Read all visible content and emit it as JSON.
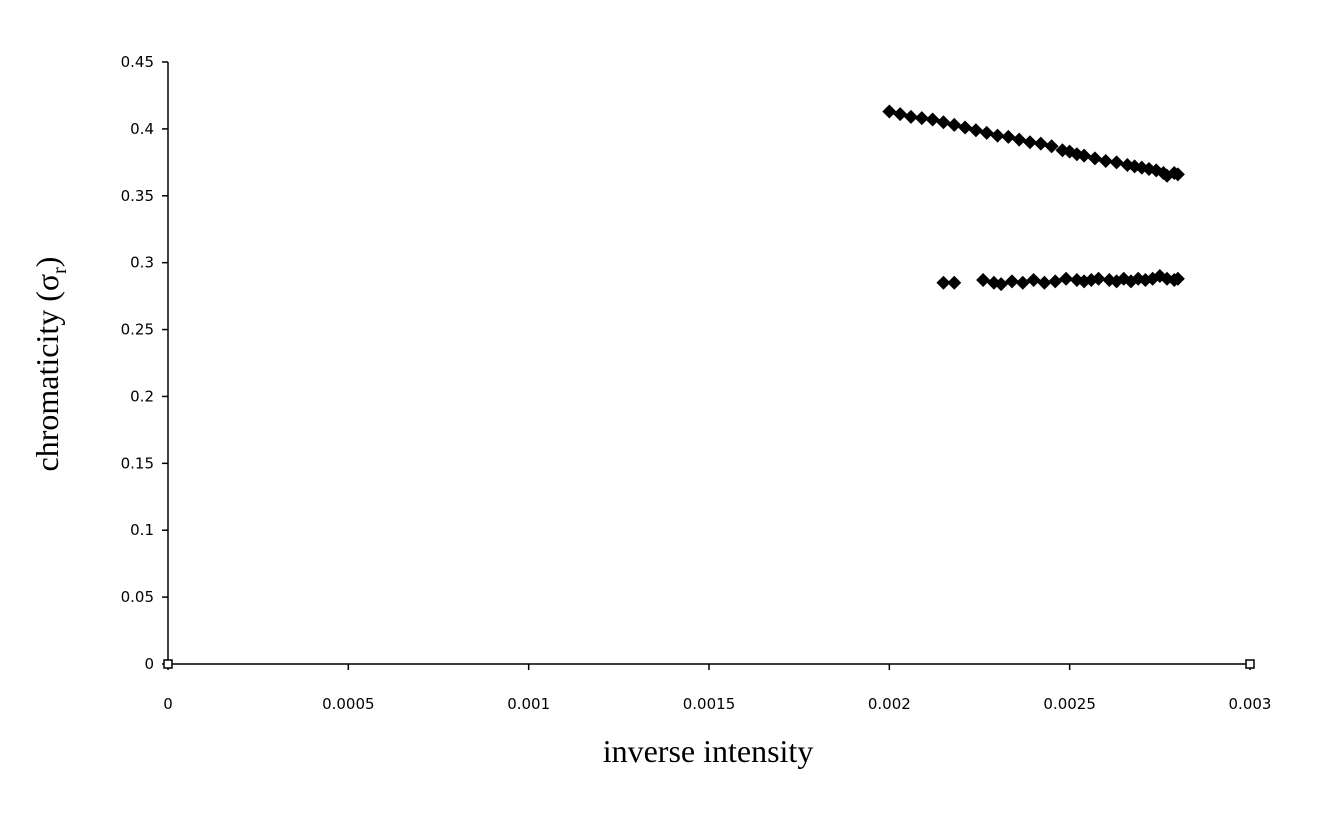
{
  "chart_data": {
    "type": "scatter",
    "xlabel": "inverse intensity",
    "ylabel": "chromaticity (σ",
    "ylabel_subscript": "r",
    "ylabel_close": ")",
    "xlim": [
      0,
      0.003
    ],
    "ylim": [
      0,
      0.45
    ],
    "x_ticks": [
      "0",
      "0.0005",
      "0.001",
      "0.0015",
      "0.002",
      "0.0025",
      "0.003"
    ],
    "y_ticks": [
      "0",
      "0.05",
      "0.1",
      "0.15",
      "0.2",
      "0.25",
      "0.3",
      "0.35",
      "0.4",
      "0.45"
    ],
    "grid": false,
    "legend": "none",
    "marker_color": "#000000",
    "series": [
      {
        "points": [
          [
            0.002,
            0.413
          ],
          [
            0.00203,
            0.411
          ],
          [
            0.00206,
            0.409
          ],
          [
            0.00209,
            0.408
          ],
          [
            0.00212,
            0.407
          ],
          [
            0.00215,
            0.405
          ],
          [
            0.00218,
            0.403
          ],
          [
            0.00221,
            0.401
          ],
          [
            0.00224,
            0.399
          ],
          [
            0.00227,
            0.397
          ],
          [
            0.0023,
            0.395
          ],
          [
            0.00233,
            0.394
          ],
          [
            0.00236,
            0.392
          ],
          [
            0.00239,
            0.39
          ],
          [
            0.00242,
            0.389
          ],
          [
            0.00245,
            0.387
          ],
          [
            0.00248,
            0.384
          ],
          [
            0.0025,
            0.383
          ],
          [
            0.00252,
            0.381
          ],
          [
            0.00254,
            0.38
          ],
          [
            0.00257,
            0.378
          ],
          [
            0.0026,
            0.376
          ],
          [
            0.00263,
            0.375
          ],
          [
            0.00266,
            0.373
          ],
          [
            0.00268,
            0.372
          ],
          [
            0.0027,
            0.371
          ],
          [
            0.00272,
            0.37
          ],
          [
            0.00274,
            0.369
          ],
          [
            0.00276,
            0.367
          ],
          [
            0.00277,
            0.365
          ],
          [
            0.00279,
            0.367
          ],
          [
            0.0028,
            0.366
          ]
        ]
      },
      {
        "points": [
          [
            0.00215,
            0.285
          ],
          [
            0.00218,
            0.285
          ],
          [
            0.00226,
            0.287
          ],
          [
            0.00229,
            0.285
          ],
          [
            0.00231,
            0.284
          ],
          [
            0.00234,
            0.286
          ],
          [
            0.00237,
            0.285
          ],
          [
            0.0024,
            0.287
          ],
          [
            0.00243,
            0.285
          ],
          [
            0.00246,
            0.286
          ],
          [
            0.00249,
            0.288
          ],
          [
            0.00252,
            0.287
          ],
          [
            0.00254,
            0.286
          ],
          [
            0.00256,
            0.287
          ],
          [
            0.00258,
            0.288
          ],
          [
            0.00261,
            0.287
          ],
          [
            0.00263,
            0.286
          ],
          [
            0.00265,
            0.288
          ],
          [
            0.00267,
            0.286
          ],
          [
            0.00269,
            0.288
          ],
          [
            0.00271,
            0.287
          ],
          [
            0.00273,
            0.288
          ],
          [
            0.00275,
            0.29
          ],
          [
            0.00277,
            0.288
          ],
          [
            0.00279,
            0.287
          ],
          [
            0.0028,
            0.288
          ]
        ]
      }
    ]
  }
}
